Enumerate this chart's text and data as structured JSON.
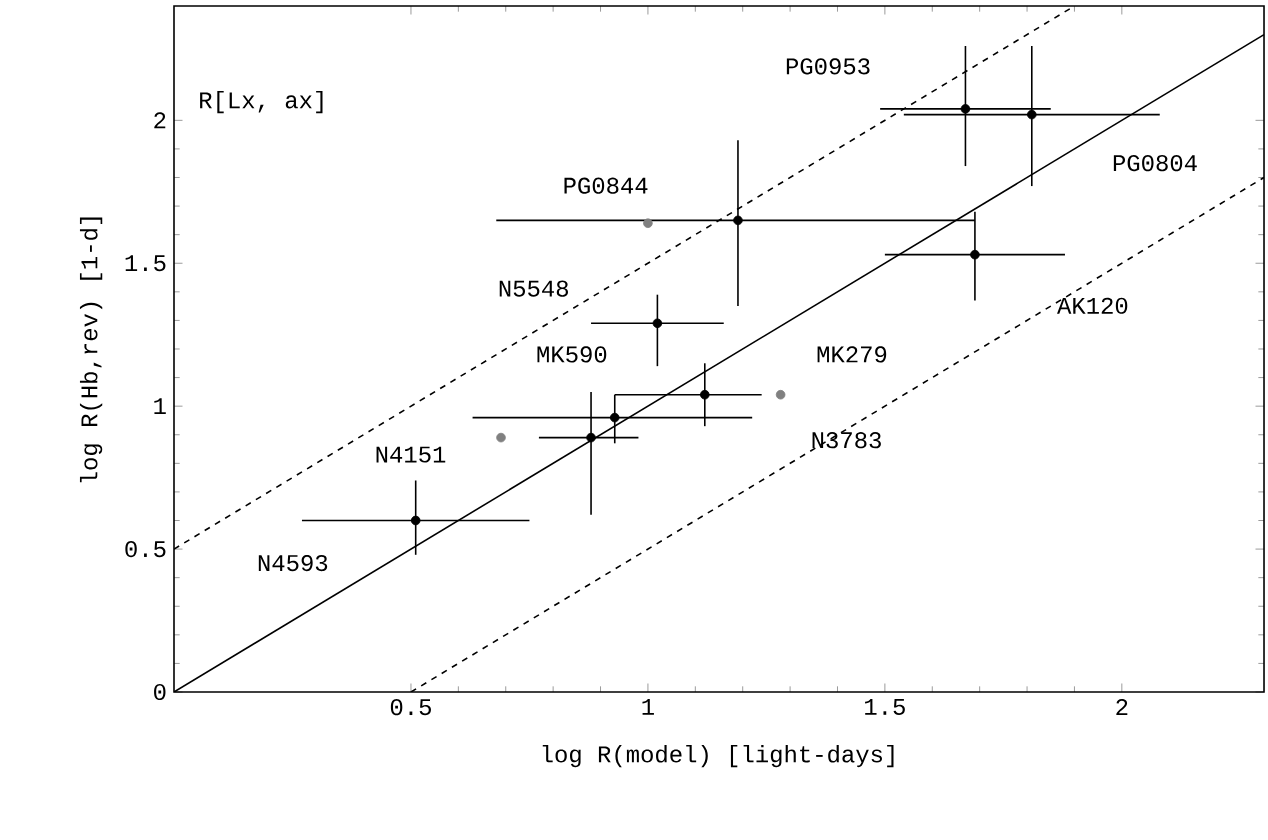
{
  "chart_data": {
    "type": "scatter",
    "xlabel": "log R(model) [light-days]",
    "ylabel": "log R(Hb,rev) [1-d]",
    "xlim": [
      0,
      2.3
    ],
    "ylim": [
      0,
      2.4
    ],
    "xticks": [
      0.5,
      1,
      1.5,
      2
    ],
    "yticks": [
      0,
      0.5,
      1,
      1.5,
      2
    ],
    "grid": false,
    "series": [
      {
        "type": "line",
        "color": "#000000",
        "line_style": "solid",
        "marker": "none",
        "x": [
          0,
          2.3
        ],
        "values": [
          0,
          2.3
        ]
      },
      {
        "type": "line",
        "color": "#000000",
        "line_style": "dashed",
        "marker": "none",
        "x": [
          0,
          1.9
        ],
        "values": [
          0.5,
          2.4
        ]
      },
      {
        "type": "line",
        "color": "#000000",
        "line_style": "dashed",
        "marker": "none",
        "x": [
          0.5,
          2.3
        ],
        "values": [
          0,
          1.8
        ]
      },
      {
        "type": "scatter",
        "color": "#000000",
        "marker": "circle",
        "x": [
          0.51,
          0.88,
          0.93,
          1.12,
          1.02,
          1.19,
          1.69,
          1.67,
          1.81
        ],
        "values": [
          0.6,
          0.89,
          0.96,
          1.04,
          1.29,
          1.65,
          1.53,
          2.04,
          2.02
        ],
        "xerrors": [
          [
            0.27,
            0.75
          ],
          [
            0.77,
            0.98
          ],
          [
            0.63,
            1.22
          ],
          [
            0.93,
            1.24
          ],
          [
            0.88,
            1.16
          ],
          [
            0.68,
            1.69
          ],
          [
            1.5,
            1.88
          ],
          [
            1.49,
            1.85
          ],
          [
            1.54,
            2.08
          ]
        ],
        "errors": [
          [
            0.48,
            0.74
          ],
          [
            0.62,
            1.05
          ],
          [
            0.87,
            1.04
          ],
          [
            0.93,
            1.15
          ],
          [
            1.14,
            1.39
          ],
          [
            1.35,
            1.93
          ],
          [
            1.37,
            1.68
          ],
          [
            1.84,
            2.26
          ],
          [
            1.77,
            2.26
          ]
        ]
      },
      {
        "type": "scatter",
        "color": "#808080",
        "marker": "circle",
        "x": [
          1.0,
          0.69,
          1.28
        ],
        "values": [
          1.64,
          0.89,
          1.04
        ]
      }
    ],
    "annotations": [
      "R[Lx, ax]",
      "PG0953",
      "PG0844",
      "PG0804",
      "N5548",
      "MK590",
      "MK279",
      "AK120",
      "N4151",
      "N3783",
      "N4593"
    ]
  }
}
